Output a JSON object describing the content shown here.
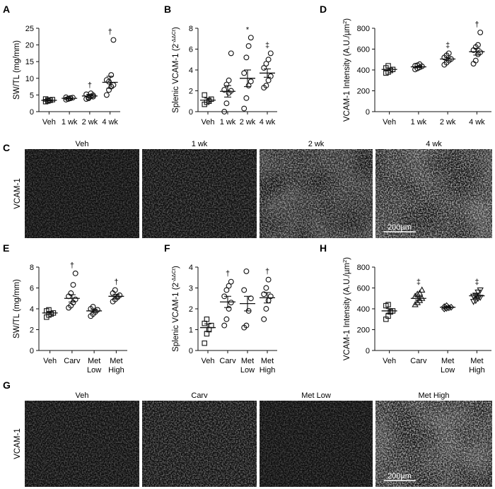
{
  "figure": {
    "micrograph_row_label": "VCAM-1",
    "scale_bar_label": "200µm",
    "micrographs_top": [
      "Veh",
      "1 wk",
      "2 wk",
      "4 wk"
    ],
    "micrographs_bottom": [
      "Veh",
      "Carv",
      "Met Low",
      "Met High"
    ],
    "micrograph_letters": [
      "C",
      "G"
    ]
  },
  "chart_data": [
    {
      "panel": "A",
      "type": "scatter",
      "ylabel": "SW/TL (mg/mm)",
      "ylim": [
        0,
        25
      ],
      "yticks": [
        0,
        5,
        10,
        15,
        20,
        25
      ],
      "categories": [
        "Veh",
        "1 wk",
        "2 wk",
        "4 wk"
      ],
      "markers": [
        "square",
        "circle",
        "circle",
        "circle"
      ],
      "points": [
        [
          3.0,
          3.2,
          3.4,
          3.6,
          3.8,
          3.5
        ],
        [
          3.6,
          3.8,
          4.0,
          4.2,
          4.3,
          3.9,
          4.1
        ],
        [
          3.8,
          4.3,
          4.6,
          4.9,
          5.2,
          4.0,
          5.5,
          4.5
        ],
        [
          5.0,
          6.5,
          7.5,
          8.0,
          9.5,
          9.0,
          11.0,
          21.5
        ]
      ],
      "mean": [
        3.4,
        4.0,
        4.7,
        8.8
      ],
      "sem": [
        0.2,
        0.15,
        0.5,
        1.8
      ],
      "sig": [
        "",
        "",
        "†",
        "†"
      ]
    },
    {
      "panel": "B",
      "type": "scatter",
      "ylabel": "Splenic VCAM-1 (2",
      "ylabel_sup": "-ΔΔCt",
      "ylabel_close": ")",
      "ylim": [
        0,
        8
      ],
      "yticks": [
        0,
        2,
        4,
        6,
        8
      ],
      "categories": [
        "Veh",
        "1 wk",
        "2 wk",
        "4 wk"
      ],
      "markers": [
        "square",
        "circle",
        "circle",
        "circle"
      ],
      "points": [
        [
          0.7,
          0.9,
          1.0,
          1.2,
          1.6
        ],
        [
          0.0,
          0.8,
          1.8,
          2.0,
          2.1,
          2.6,
          3.0,
          5.6
        ],
        [
          0.3,
          1.3,
          2.5,
          2.9,
          3.7,
          5.2,
          6.3,
          7.1
        ],
        [
          2.3,
          2.5,
          3.0,
          3.4,
          4.2,
          4.6,
          5.0,
          5.6
        ]
      ],
      "mean": [
        1.1,
        1.95,
        3.2,
        3.7
      ],
      "sem": [
        0.2,
        0.55,
        0.8,
        0.4
      ],
      "sig": [
        "",
        "",
        "*",
        "‡"
      ]
    },
    {
      "panel": "D",
      "type": "scatter",
      "ylabel": "VCAM-1 Intensity (A.U./µm",
      "ylabel_sup": "2",
      "ylabel_close": ")",
      "ylim": [
        0,
        800
      ],
      "yticks": [
        0,
        200,
        400,
        600,
        800
      ],
      "categories": [
        "Veh",
        "1 wk",
        "2 wk",
        "4 wk"
      ],
      "markers": [
        "square",
        "circle",
        "circle",
        "circle"
      ],
      "points": [
        [
          370,
          380,
          395,
          405,
          420,
          440
        ],
        [
          405,
          415,
          425,
          435,
          440,
          445,
          455
        ],
        [
          450,
          470,
          490,
          505,
          520,
          540,
          560
        ],
        [
          460,
          490,
          550,
          570,
          590,
          620,
          640,
          760
        ]
      ],
      "mean": [
        405,
        430,
        505,
        575
      ],
      "sem": [
        13,
        7,
        18,
        32
      ],
      "sig": [
        "",
        "",
        "‡",
        "†"
      ]
    },
    {
      "panel": "E",
      "type": "scatter",
      "ylabel": "SW/TL (mg/mm)",
      "ylim": [
        0,
        8
      ],
      "yticks": [
        0,
        2,
        4,
        6,
        8
      ],
      "categories": [
        "Veh",
        "Carv",
        "Met\nLow",
        "Met\nHigh"
      ],
      "markers": [
        "square",
        "circle",
        "circle",
        "circle"
      ],
      "points": [
        [
          3.2,
          3.4,
          3.5,
          3.6,
          3.8,
          3.9
        ],
        [
          4.1,
          4.3,
          4.6,
          4.9,
          5.2,
          5.5,
          6.3,
          7.4
        ],
        [
          3.3,
          3.5,
          3.7,
          3.9,
          4.0,
          4.2
        ],
        [
          4.7,
          4.9,
          5.1,
          5.3,
          5.5,
          5.8
        ]
      ],
      "mean": [
        3.6,
        5.0,
        3.8,
        5.2
      ],
      "sem": [
        0.15,
        0.35,
        0.15,
        0.2
      ],
      "sig": [
        "",
        "†",
        "",
        "†"
      ]
    },
    {
      "panel": "F",
      "type": "scatter",
      "ylabel": "Splenic VCAM-1 (2",
      "ylabel_sup": "-ΔΔCt",
      "ylabel_close": ")",
      "ylim": [
        0,
        4
      ],
      "yticks": [
        0,
        1,
        2,
        3,
        4
      ],
      "categories": [
        "Veh",
        "Carv",
        "Met\nLow",
        "Met\nHigh"
      ],
      "markers": [
        "square",
        "circle",
        "circle",
        "circle"
      ],
      "points": [
        [
          0.35,
          0.8,
          1.0,
          1.2,
          1.3,
          1.5
        ],
        [
          1.2,
          1.5,
          2.0,
          2.3,
          2.6,
          2.9,
          3.1,
          3.3
        ],
        [
          1.1,
          1.2,
          1.9,
          2.5,
          2.9,
          3.8
        ],
        [
          1.5,
          2.0,
          2.4,
          2.6,
          2.7,
          3.0,
          3.4
        ]
      ],
      "mean": [
        1.1,
        2.33,
        2.25,
        2.53
      ],
      "sem": [
        0.18,
        0.27,
        0.35,
        0.25
      ],
      "sig": [
        "",
        "†",
        "",
        "†"
      ]
    },
    {
      "panel": "H",
      "type": "scatter",
      "ylabel": "VCAM-1 Intensity (A.U./µm",
      "ylabel_sup": "2",
      "ylabel_close": ")",
      "ylim": [
        0,
        800
      ],
      "yticks": [
        0,
        200,
        400,
        600,
        800
      ],
      "categories": [
        "Veh",
        "Carv",
        "Met\nLow",
        "Met\nHigh"
      ],
      "markers": [
        "square",
        "triangle-up",
        "diamond",
        "triangle-down"
      ],
      "points": [
        [
          300,
          330,
          370,
          380,
          430,
          440
        ],
        [
          440,
          460,
          480,
          500,
          520,
          540,
          550,
          580
        ],
        [
          400,
          405,
          410,
          415,
          420,
          430
        ],
        [
          470,
          480,
          500,
          510,
          520,
          530,
          560,
          580
        ]
      ],
      "mean": [
        380,
        500,
        415,
        525
      ],
      "sem": [
        22,
        16,
        6,
        17
      ],
      "sig": [
        "",
        "‡",
        "",
        "‡"
      ]
    }
  ]
}
